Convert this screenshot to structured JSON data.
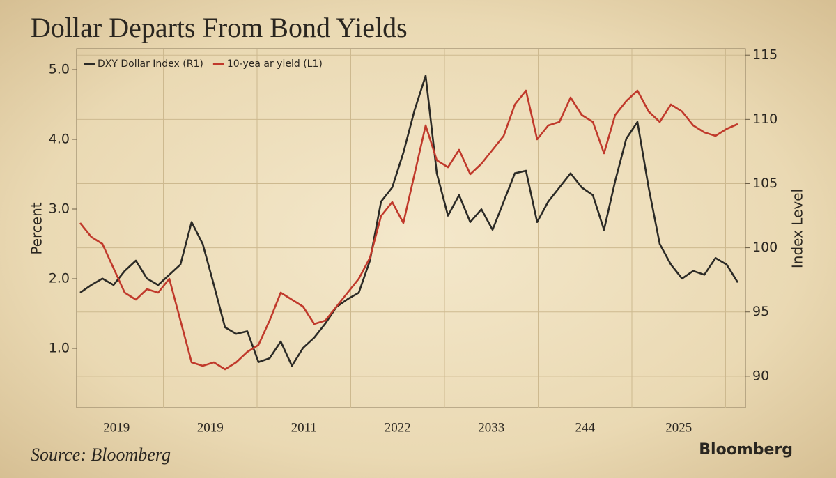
{
  "chart_data": {
    "type": "line",
    "title": "Dollar Departs From Bond Yields",
    "y_label": "Percent",
    "y2_label": "Index Level",
    "source": "Source: Bloomberg",
    "brand": "Bloomberg",
    "x_labels": [
      "2019",
      "2019",
      "2011",
      "2022",
      "2033",
      "244",
      "2025"
    ],
    "ylim": [
      0.15,
      5.3
    ],
    "yticks": [
      {
        "value": 1,
        "label": "1.0"
      },
      {
        "value": 2,
        "label": "2.0"
      },
      {
        "value": 3,
        "label": "3.0"
      },
      {
        "value": 4,
        "label": "4.0"
      },
      {
        "value": 5,
        "label": "5.0"
      }
    ],
    "y2lim": [
      87.55,
      115.5
    ],
    "y2ticks": [
      90,
      95,
      100,
      105,
      110,
      115
    ],
    "grid": true,
    "legend": "top-left",
    "series": [
      {
        "name": "DXY Dollar Index (R1)",
        "color": "#2b2a26",
        "axis": "y2",
        "values": [
          96.5,
          97.1,
          97.6,
          97.1,
          98.2,
          99.0,
          97.6,
          97.1,
          97.9,
          98.7,
          102.0,
          100.3,
          97.1,
          93.8,
          93.3,
          93.5,
          91.1,
          91.4,
          92.7,
          90.8,
          92.2,
          93.0,
          94.1,
          95.4,
          96.0,
          96.5,
          99.0,
          103.6,
          104.7,
          107.4,
          110.7,
          113.4,
          105.8,
          102.5,
          104.1,
          102.0,
          103.0,
          101.4,
          103.6,
          105.8,
          106.0,
          102.0,
          103.6,
          104.7,
          105.8,
          104.7,
          104.1,
          101.4,
          105.2,
          108.5,
          109.8,
          104.7,
          100.3,
          98.7,
          97.6,
          98.2,
          97.9,
          99.2,
          98.7,
          97.3
        ]
      },
      {
        "name": "10-yea ar yield (L1)",
        "color": "#c0392b",
        "values": [
          2.8,
          2.6,
          2.5,
          2.15,
          1.8,
          1.7,
          1.85,
          1.8,
          2.0,
          1.4,
          0.8,
          0.75,
          0.8,
          0.7,
          0.8,
          0.95,
          1.05,
          1.4,
          1.8,
          1.7,
          1.6,
          1.35,
          1.4,
          1.6,
          1.8,
          2.0,
          2.3,
          2.9,
          3.1,
          2.8,
          3.5,
          4.2,
          3.7,
          3.6,
          3.85,
          3.5,
          3.65,
          3.85,
          4.05,
          4.5,
          4.7,
          4.0,
          4.2,
          4.25,
          4.6,
          4.35,
          4.25,
          3.8,
          4.35,
          4.55,
          4.7,
          4.4,
          4.25,
          4.5,
          4.4,
          4.2,
          4.1,
          4.05,
          4.15,
          4.22
        ]
      }
    ]
  }
}
